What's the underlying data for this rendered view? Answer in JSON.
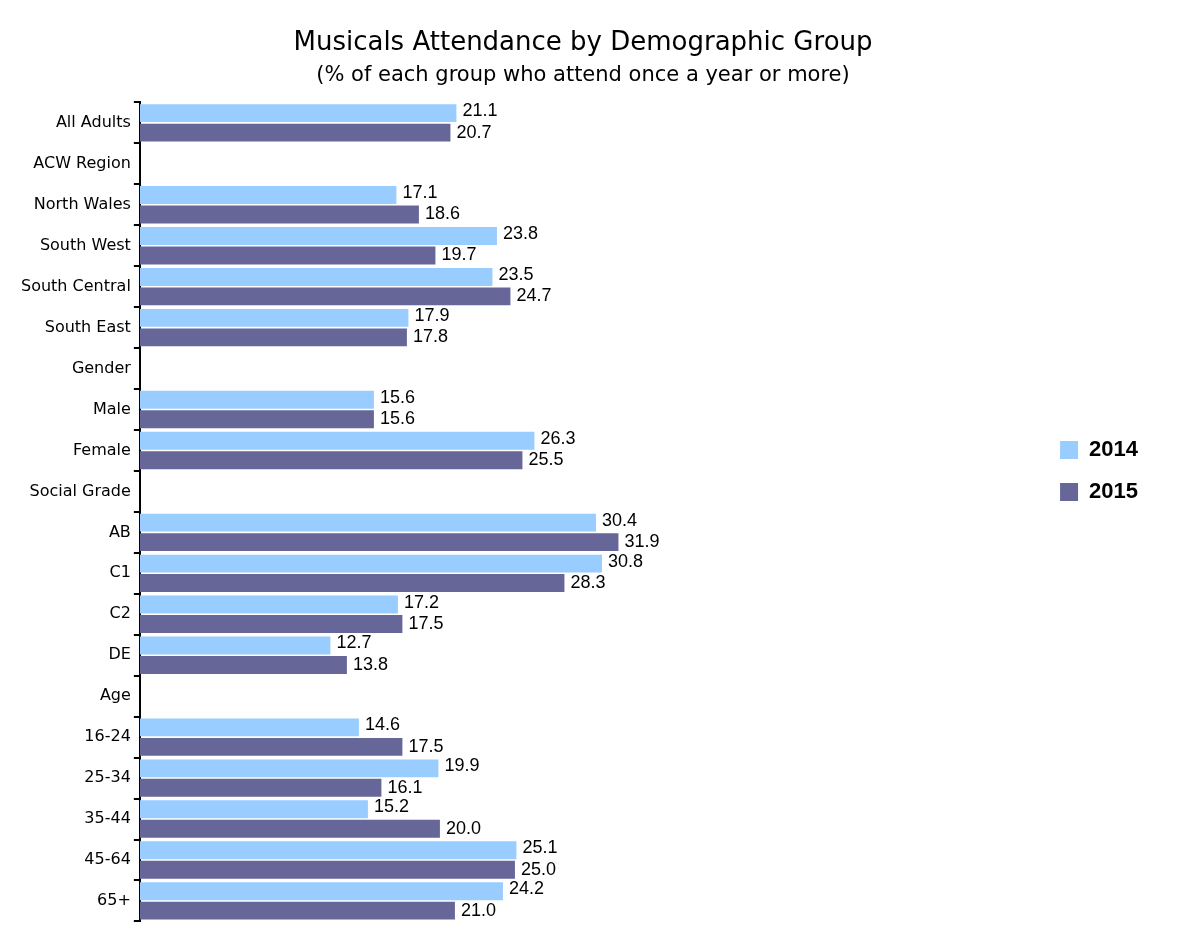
{
  "chart_data": {
    "type": "bar",
    "orientation": "horizontal",
    "title": "Musicals Attendance by Demographic Group",
    "subtitle": "(% of each group who attend once a year or more)",
    "categories": [
      "All Adults",
      "ACW Region",
      "North Wales",
      "South West",
      "South Central",
      "South East",
      "Gender",
      "Male",
      "Female",
      "Social Grade",
      "AB",
      "C1",
      "C2",
      "DE",
      "Age",
      "16-24",
      "25-34",
      "35-44",
      "45-64",
      "65+"
    ],
    "series": [
      {
        "name": "2014",
        "color": "#99ccff",
        "values": [
          21.1,
          null,
          17.1,
          23.8,
          23.5,
          17.9,
          null,
          15.6,
          26.3,
          null,
          30.4,
          30.8,
          17.2,
          12.7,
          null,
          14.6,
          19.9,
          15.2,
          25.1,
          24.2
        ],
        "value_labels": [
          "21.1",
          null,
          "17.1",
          "23.8",
          "23.5",
          "17.9",
          null,
          "15.6",
          "26.3",
          null,
          "30.4",
          "30.8",
          "17.2",
          "12.7",
          null,
          "14.6",
          "19.9",
          "15.2",
          "25.1",
          "24.2"
        ]
      },
      {
        "name": "2015",
        "color": "#666699",
        "values": [
          20.7,
          null,
          18.6,
          19.7,
          24.7,
          17.8,
          null,
          15.6,
          25.5,
          null,
          31.9,
          28.3,
          17.5,
          13.8,
          null,
          17.5,
          16.1,
          20.0,
          25.0,
          21.0
        ],
        "value_labels": [
          "20.7",
          null,
          "18.6",
          "19.7",
          "24.7",
          "17.8",
          null,
          "15.6",
          "25.5",
          null,
          "31.9",
          "28.3",
          "17.5",
          "13.8",
          null,
          "17.5",
          "16.1",
          "20.0",
          "25.0",
          "21.0"
        ]
      }
    ],
    "legend": "right",
    "grid": false,
    "tick_labels": "y"
  }
}
